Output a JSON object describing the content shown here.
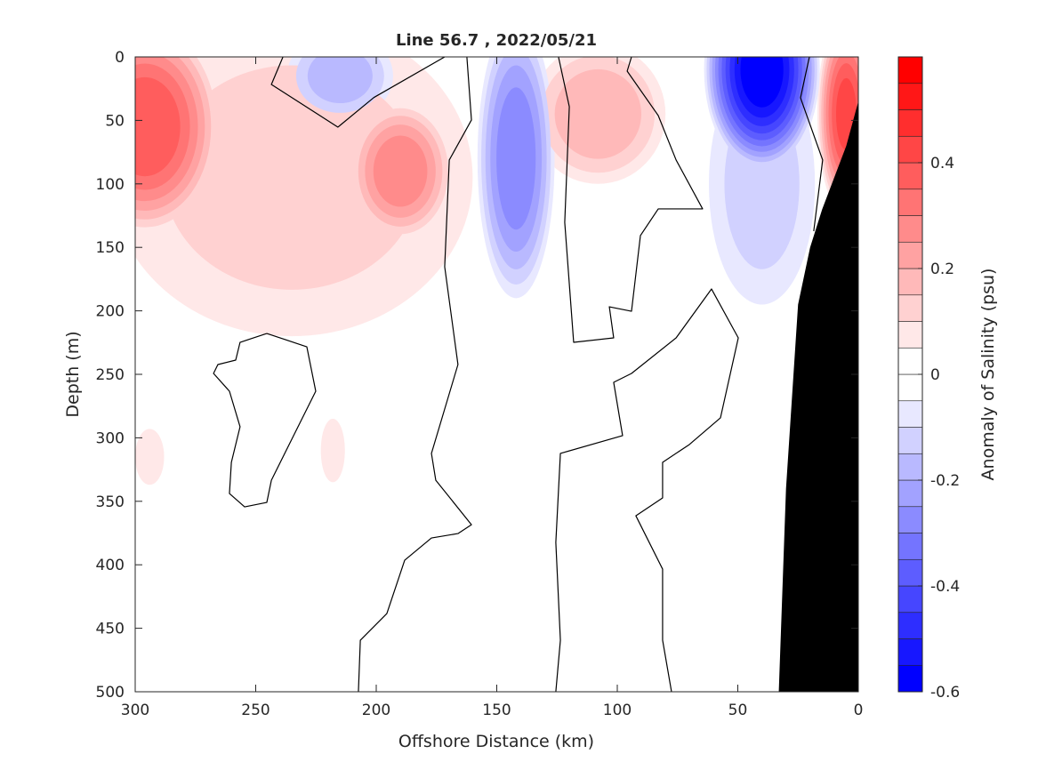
{
  "chart_data": {
    "type": "heatmap",
    "subtype": "filled-contour",
    "title": "Line 56.7 , 2022/05/21",
    "xlabel": "Offshore Distance (km)",
    "ylabel": "Depth (m)",
    "colorbar_label": "Anomaly of Salinity (psu)",
    "xlim": [
      300,
      0
    ],
    "ylim": [
      0,
      500
    ],
    "x_ticks": [
      "300",
      "250",
      "200",
      "150",
      "100",
      "50",
      "0"
    ],
    "x_tick_values": [
      300,
      250,
      200,
      150,
      100,
      50,
      0
    ],
    "y_ticks": [
      "0",
      "50",
      "100",
      "150",
      "200",
      "250",
      "300",
      "350",
      "400",
      "450",
      "500"
    ],
    "y_tick_values": [
      0,
      50,
      100,
      150,
      200,
      250,
      300,
      350,
      400,
      450,
      500
    ],
    "clim": [
      -0.6,
      0.6
    ],
    "level_step": 0.05,
    "colorbar_ticks": [
      "0.4",
      "0.2",
      "0",
      "-0.2",
      "-0.4",
      "-0.6"
    ],
    "colorbar_tick_values": [
      0.4,
      0.2,
      0,
      -0.2,
      -0.4,
      -0.6
    ],
    "colors": {
      "positive": "#ff0000",
      "negative": "#0000ff",
      "zero": "#ffffff",
      "bathymetry": "#000000",
      "contour": "#000000"
    },
    "anomaly_patches": [
      {
        "km": 235,
        "depth": 95,
        "rkm": 75,
        "rdepth": 125,
        "peak": 0.1
      },
      {
        "km": 296,
        "depth": 55,
        "rkm": 32,
        "rdepth": 85,
        "peak": 0.38
      },
      {
        "km": 190,
        "depth": 90,
        "rkm": 22,
        "rdepth": 55,
        "peak": 0.27
      },
      {
        "km": 108,
        "depth": 45,
        "rkm": 28,
        "rdepth": 55,
        "peak": 0.17
      },
      {
        "km": 5,
        "depth": 45,
        "rkm": 12,
        "rdepth": 80,
        "peak": 0.4
      },
      {
        "km": 218,
        "depth": 310,
        "rkm": 5,
        "rdepth": 25,
        "peak": 0.07
      },
      {
        "km": 294,
        "depth": 315,
        "rkm": 6,
        "rdepth": 22,
        "peak": 0.07
      },
      {
        "km": 215,
        "depth": 15,
        "rkm": 22,
        "rdepth": 35,
        "peak": -0.16
      },
      {
        "km": 142,
        "depth": 80,
        "rkm": 16,
        "rdepth": 110,
        "peak": -0.27
      },
      {
        "km": 40,
        "depth": 100,
        "rkm": 22,
        "rdepth": 95,
        "peak": -0.1
      },
      {
        "km": 40,
        "depth": 10,
        "rkm": 24,
        "rdepth": 80,
        "peak": -0.58
      }
    ],
    "zero_contours": [
      [
        [
          238.7,
          0
        ],
        [
          243.5,
          21.7
        ],
        [
          215.9,
          55.3
        ],
        [
          201,
          32
        ],
        [
          171.6,
          0
        ]
      ],
      [
        [
          162.4,
          0
        ],
        [
          160.5,
          49.7
        ],
        [
          169.7,
          81.2
        ],
        [
          171.6,
          165.3
        ],
        [
          166.1,
          242.3
        ],
        [
          177.1,
          312.3
        ],
        [
          175.3,
          333.4
        ],
        [
          160.5,
          368.4
        ],
        [
          166.1,
          375.4
        ],
        [
          177.1,
          378.9
        ],
        [
          188.2,
          396.4
        ],
        [
          195.6,
          438.4
        ],
        [
          206.6,
          459.4
        ],
        [
          207.4,
          500
        ]
      ],
      [
        [
          124.4,
          0
        ],
        [
          119.9,
          39.2
        ],
        [
          121.8,
          130.3
        ],
        [
          118.1,
          224.8
        ],
        [
          101.5,
          221.3
        ],
        [
          103.3,
          196.8
        ],
        [
          94.1,
          200.3
        ],
        [
          90.4,
          140.7
        ],
        [
          83,
          119.7
        ],
        [
          64.6,
          119.7
        ],
        [
          75.6,
          81.2
        ],
        [
          83,
          46.2
        ],
        [
          95.9,
          11.2
        ],
        [
          94.1,
          0
        ]
      ],
      [
        [
          125.5,
          500
        ],
        [
          123.6,
          459.4
        ],
        [
          125.5,
          382.4
        ],
        [
          123.6,
          312.3
        ],
        [
          97.8,
          298.3
        ],
        [
          101.5,
          256.3
        ],
        [
          94.1,
          249.3
        ],
        [
          75.6,
          221.3
        ],
        [
          60.9,
          182.8
        ],
        [
          49.8,
          221.3
        ],
        [
          57.2,
          284.3
        ],
        [
          70.1,
          305.3
        ],
        [
          81.2,
          319.3
        ],
        [
          81.2,
          347.3
        ],
        [
          92.3,
          361.4
        ],
        [
          81.2,
          403.4
        ],
        [
          81.2,
          459.4
        ],
        [
          77.5,
          500
        ]
      ],
      [
        [
          20.3,
          0
        ],
        [
          24,
          32.2
        ],
        [
          14.8,
          81.2
        ],
        [
          18.5,
          137.2
        ]
      ],
      [
        [
          245.4,
          217.8
        ],
        [
          228.8,
          228.3
        ],
        [
          225.1,
          263.3
        ],
        [
          234.3,
          298.3
        ],
        [
          243.5,
          333.4
        ],
        [
          245.4,
          350.9
        ],
        [
          254.6,
          354.4
        ],
        [
          260.9,
          343.9
        ],
        [
          260.1,
          319.3
        ],
        [
          256.5,
          291.3
        ],
        [
          260.9,
          263.3
        ],
        [
          267.5,
          249.3
        ],
        [
          265.7,
          242.3
        ],
        [
          258.3,
          238.8
        ],
        [
          256.5,
          224.8
        ],
        [
          245.4,
          217.8
        ]
      ]
    ],
    "bathymetry": [
      [
        0,
        35
      ],
      [
        5,
        70
      ],
      [
        15,
        120
      ],
      [
        20,
        150
      ],
      [
        25,
        195
      ],
      [
        30,
        340
      ],
      [
        33,
        500
      ],
      [
        0,
        500
      ]
    ]
  }
}
